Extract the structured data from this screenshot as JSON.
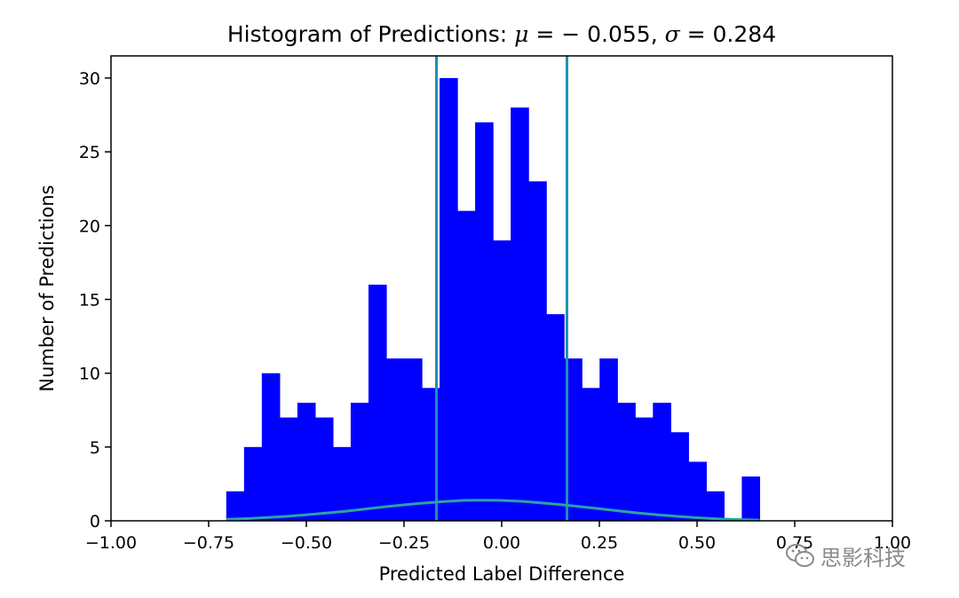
{
  "chart_data": {
    "type": "bar",
    "title_prefix": "Histogram of Predictions: ",
    "title_mu_symbol": "μ",
    "title_mu_value": " = − 0.055, ",
    "title_sigma_symbol": "σ",
    "title_sigma_value": " = 0.284",
    "mean": -0.055,
    "std": 0.284,
    "xlabel": "Predicted Label Difference",
    "ylabel": "Number of Predictions",
    "xlim": [
      -1.0,
      1.0
    ],
    "ylim": [
      0,
      31.5
    ],
    "xticks": [
      -1.0,
      -0.75,
      -0.5,
      -0.25,
      0.0,
      0.25,
      0.5,
      0.75,
      1.0
    ],
    "xtick_labels": [
      "−1.00",
      "−0.75",
      "−0.50",
      "−0.25",
      "0.00",
      "0.25",
      "0.50",
      "0.75",
      "1.00"
    ],
    "yticks": [
      0,
      5,
      10,
      15,
      20,
      25,
      30
    ],
    "ytick_labels": [
      "0",
      "5",
      "10",
      "15",
      "20",
      "25",
      "30"
    ],
    "bar_color": "#0000ff",
    "line_color": "#1f8fb8",
    "curve_color": "#2aa3a3",
    "bin_start": -0.705,
    "bin_width": 0.0455,
    "counts": [
      2,
      5,
      10,
      7,
      8,
      7,
      5,
      8,
      16,
      11,
      11,
      9,
      30,
      21,
      27,
      19,
      28,
      23,
      14,
      11,
      9,
      11,
      8,
      7,
      8,
      6,
      4,
      2,
      0,
      3
    ],
    "vlines": [
      -0.167,
      0.167
    ],
    "curve": {
      "x": [
        -0.705,
        -0.65,
        -0.6,
        -0.55,
        -0.5,
        -0.45,
        -0.4,
        -0.35,
        -0.3,
        -0.25,
        -0.2,
        -0.15,
        -0.1,
        -0.055,
        0.0,
        0.05,
        0.1,
        0.15,
        0.2,
        0.25,
        0.3,
        0.35,
        0.4,
        0.45,
        0.5,
        0.55,
        0.6,
        0.66
      ],
      "y": [
        0.1,
        0.15,
        0.22,
        0.3,
        0.4,
        0.52,
        0.65,
        0.8,
        0.95,
        1.08,
        1.2,
        1.3,
        1.38,
        1.4,
        1.38,
        1.32,
        1.22,
        1.1,
        0.96,
        0.82,
        0.67,
        0.53,
        0.41,
        0.3,
        0.21,
        0.14,
        0.09,
        0.05
      ]
    }
  },
  "watermark": {
    "text": "思影科技",
    "icon": "wechat-icon"
  }
}
